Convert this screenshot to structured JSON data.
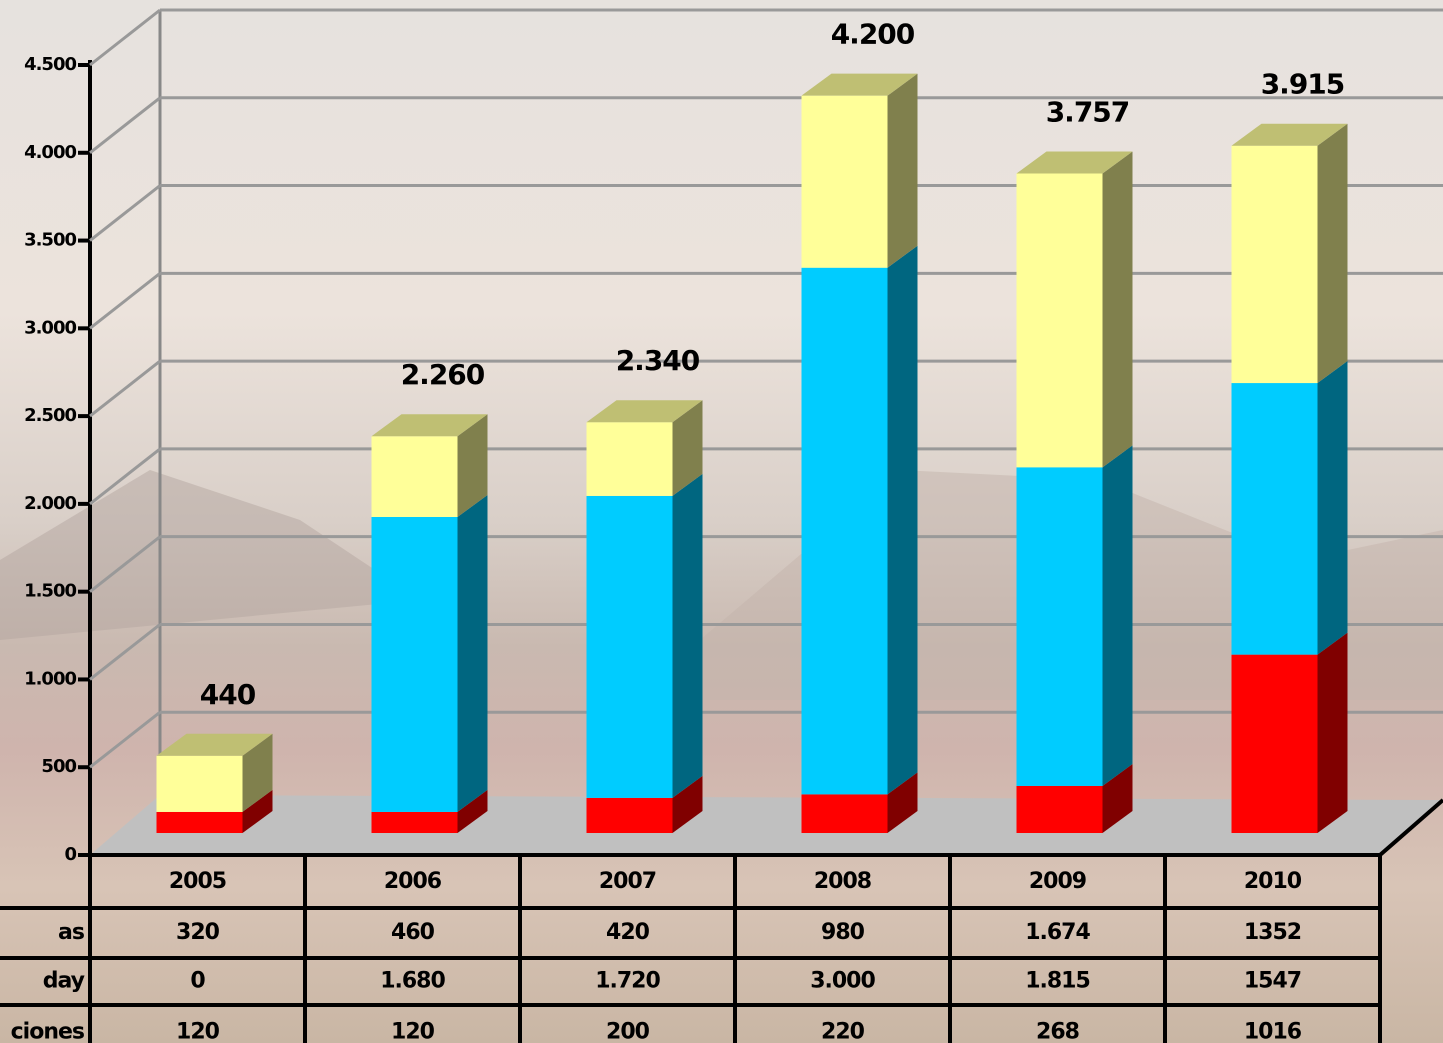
{
  "chart_data": {
    "type": "bar3d-stacked",
    "categories": [
      "2005",
      "2006",
      "2007",
      "2008",
      "2009",
      "2010"
    ],
    "series": [
      {
        "name": "as",
        "color": "#ffff99",
        "values": [
          320,
          460,
          420,
          980,
          1674,
          1352
        ],
        "value_labels": [
          "320",
          "460",
          "420",
          "980",
          "1.674",
          "1352"
        ]
      },
      {
        "name": "day",
        "color": "#00ccff",
        "values": [
          0,
          1680,
          1720,
          3000,
          1815,
          1547
        ],
        "value_labels": [
          "0",
          "1.680",
          "1.720",
          "3.000",
          "1.815",
          "1547"
        ]
      },
      {
        "name": "ciones",
        "color": "#ff0000",
        "values": [
          120,
          120,
          200,
          220,
          268,
          1016
        ],
        "value_labels": [
          "120",
          "120",
          "200",
          "220",
          "268",
          "1016"
        ]
      }
    ],
    "totals": {
      "values": [
        440,
        2260,
        2340,
        4200,
        3757,
        3915
      ],
      "value_labels": [
        "440",
        "2.260",
        "2.340",
        "4.200",
        "3.757",
        "3.915"
      ]
    },
    "ylim": [
      0,
      4500
    ],
    "yticks": [
      0,
      500,
      {
        "value": 1000,
        "label": "1.000"
      },
      {
        "value": 1500,
        "label": "1.500"
      },
      {
        "value": 2000,
        "label": "2.000"
      },
      {
        "value": 2500,
        "label": "2.500"
      },
      {
        "value": 3000,
        "label": "3.000"
      },
      {
        "value": 3500,
        "label": "3.500"
      },
      {
        "value": 4000,
        "label": "4.000"
      },
      {
        "value": 4500,
        "label": "4.500"
      }
    ],
    "grid": true
  }
}
